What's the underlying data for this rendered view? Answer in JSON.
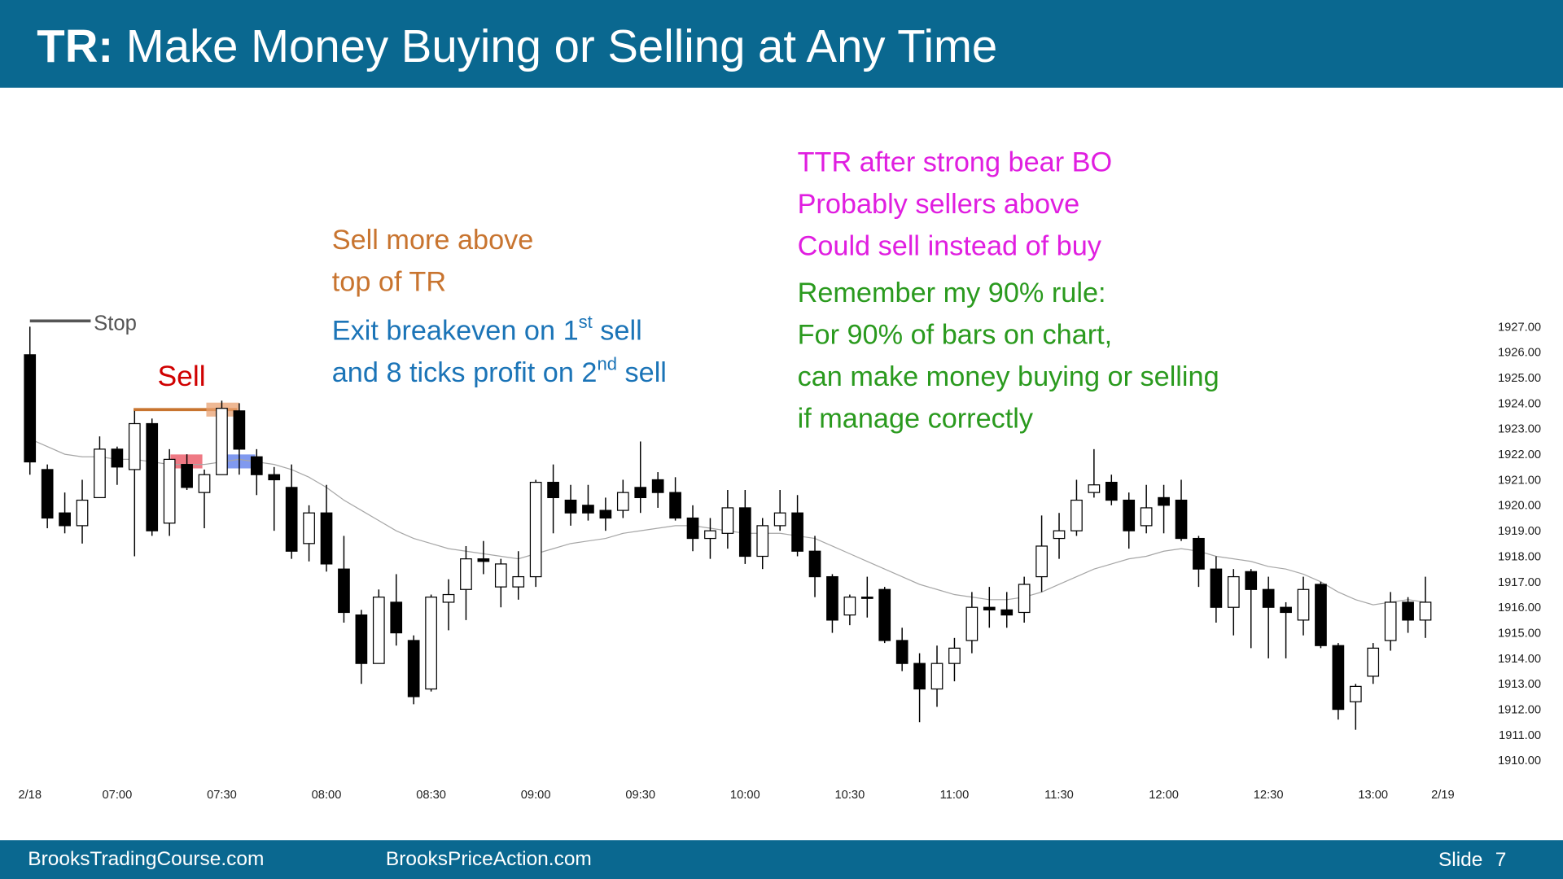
{
  "header": {
    "prefix": "TR:",
    "title": "Make Money Buying or Selling at Any Time"
  },
  "footer": {
    "left": "BrooksTradingCourse.com",
    "middle": "BrooksPriceAction.com",
    "slide_label": "Slide",
    "slide_number": "7"
  },
  "chart_data": {
    "type": "candlestick",
    "annotations": {
      "stop": "Stop",
      "sell": "Sell",
      "orange": [
        "Sell more above",
        "top of TR"
      ],
      "blue": [
        [
          "Exit breakeven on 1",
          "st",
          " sell"
        ],
        [
          "and 8 ticks profit on 2",
          "nd",
          " sell"
        ]
      ],
      "magenta": [
        "TTR after strong bear BO",
        "Probably sellers above",
        "Could sell instead of buy"
      ],
      "green": [
        "Remember my 90% rule:",
        "For 90% of bars on chart,",
        "can make money buying or selling",
        "if manage correctly"
      ]
    },
    "categories": [
      "2/18",
      null,
      null,
      null,
      null,
      "07:00",
      null,
      null,
      null,
      null,
      null,
      "07:30",
      null,
      null,
      null,
      null,
      null,
      "08:00",
      null,
      null,
      null,
      null,
      null,
      "08:30",
      null,
      null,
      null,
      null,
      null,
      "09:00",
      null,
      null,
      null,
      null,
      null,
      "09:30",
      null,
      null,
      null,
      null,
      null,
      "10:00",
      null,
      null,
      null,
      null,
      null,
      "10:30",
      null,
      null,
      null,
      null,
      null,
      "11:00",
      null,
      null,
      null,
      null,
      null,
      "11:30",
      null,
      null,
      null,
      null,
      null,
      "12:00",
      null,
      null,
      null,
      null,
      null,
      "12:30",
      null,
      null,
      null,
      null,
      null,
      "13:00",
      null,
      null,
      null,
      "2/19"
    ],
    "open": [
      1925.9,
      1921.4,
      1919.7,
      1919.2,
      1920.3,
      1922.2,
      1921.4,
      1923.2,
      1919.3,
      1921.6,
      1920.5,
      1921.2,
      1923.7,
      1921.9,
      1921.2,
      1920.7,
      1918.5,
      1919.7,
      1917.5,
      1915.7,
      1913.8,
      1916.2,
      1914.7,
      1912.8,
      1916.2,
      1916.7,
      1917.9,
      1916.8,
      1916.8,
      1917.2,
      1920.9,
      1920.2,
      1920.0,
      1919.8,
      1919.8,
      1920.7,
      1921.0,
      1920.5,
      1919.5,
      1918.7,
      1918.9,
      1919.9,
      1918.0,
      1919.2,
      1919.7,
      1918.2,
      1917.2,
      1915.7,
      1916.4,
      1916.7,
      1914.7,
      1913.8,
      1912.8,
      1913.8,
      1914.7,
      1916.0,
      1915.9,
      1915.8,
      1917.2,
      1918.7,
      1919.0,
      1920.5,
      1920.9,
      1920.2,
      1919.2,
      1920.3,
      1920.2,
      1918.7,
      1917.5,
      1916.0,
      1917.4,
      1916.7,
      1916.0,
      1915.5,
      1916.9,
      1914.5,
      1912.3,
      1913.3,
      1914.7,
      1916.2,
      1915.5,
      null
    ],
    "high": [
      1927.0,
      1921.6,
      1920.5,
      1921.0,
      1922.7,
      1922.3,
      1923.7,
      1923.4,
      1922.2,
      1922.0,
      1921.4,
      1924.1,
      1924.0,
      1922.2,
      1921.5,
      1921.6,
      1920.0,
      1920.8,
      1918.8,
      1915.9,
      1916.7,
      1917.3,
      1914.9,
      1916.5,
      1917.1,
      1918.4,
      1918.6,
      1917.9,
      1918.2,
      1921.0,
      1921.6,
      1920.8,
      1920.8,
      1920.3,
      1921.0,
      1922.5,
      1921.3,
      1921.1,
      1920.0,
      1919.5,
      1920.6,
      1920.6,
      1919.5,
      1920.6,
      1920.4,
      1918.8,
      1917.3,
      1916.5,
      1917.2,
      1916.8,
      1915.2,
      1914.2,
      1914.5,
      1914.8,
      1916.6,
      1916.8,
      1916.6,
      1917.2,
      1919.6,
      1919.7,
      1921.0,
      1922.2,
      1921.2,
      1920.5,
      1920.8,
      1920.8,
      1921.0,
      1918.8,
      1918.0,
      1917.5,
      1917.5,
      1917.2,
      1916.2,
      1917.2,
      1917.0,
      1914.6,
      1913.0,
      1914.6,
      1916.6,
      1916.4,
      1917.2,
      null
    ],
    "low": [
      1921.2,
      1919.1,
      1918.9,
      1918.5,
      1920.3,
      1920.8,
      1918.0,
      1918.8,
      1918.8,
      1920.6,
      1919.1,
      1921.2,
      1921.2,
      1920.4,
      1919.0,
      1917.9,
      1917.8,
      1917.4,
      1915.4,
      1913.0,
      1913.8,
      1914.5,
      1912.2,
      1912.7,
      1915.1,
      1915.5,
      1917.3,
      1916.0,
      1916.3,
      1916.8,
      1918.9,
      1919.2,
      1919.4,
      1919.0,
      1919.5,
      1919.7,
      1919.9,
      1919.4,
      1918.2,
      1917.9,
      1918.3,
      1917.7,
      1917.5,
      1919.0,
      1918.0,
      1916.4,
      1915.0,
      1915.3,
      1915.6,
      1914.6,
      1913.5,
      1911.5,
      1912.1,
      1913.1,
      1914.2,
      1915.2,
      1915.2,
      1915.4,
      1916.6,
      1917.9,
      1918.8,
      1920.3,
      1920.0,
      1918.3,
      1918.9,
      1918.9,
      1918.6,
      1916.8,
      1915.4,
      1914.9,
      1914.4,
      1914.0,
      1914.0,
      1914.9,
      1914.4,
      1911.6,
      1911.2,
      1913.0,
      1914.3,
      1915.0,
      1914.8,
      null
    ],
    "close": [
      1921.7,
      1919.5,
      1919.2,
      1920.2,
      1922.2,
      1921.5,
      1923.2,
      1919.0,
      1921.8,
      1920.7,
      1921.2,
      1923.8,
      1922.2,
      1921.2,
      1921.0,
      1918.2,
      1919.7,
      1917.7,
      1915.8,
      1913.8,
      1916.4,
      1915.0,
      1912.5,
      1916.4,
      1916.5,
      1917.9,
      1917.8,
      1917.7,
      1917.2,
      1920.9,
      1920.3,
      1919.7,
      1919.7,
      1919.5,
      1920.5,
      1920.3,
      1920.5,
      1919.5,
      1918.7,
      1919.0,
      1919.9,
      1918.0,
      1919.2,
      1919.7,
      1918.2,
      1917.2,
      1915.5,
      1916.4,
      1916.35,
      1914.7,
      1913.8,
      1912.8,
      1913.8,
      1914.4,
      1916.0,
      1915.9,
      1915.7,
      1916.9,
      1918.4,
      1919.0,
      1920.2,
      1920.8,
      1920.2,
      1919.0,
      1919.9,
      1920.0,
      1918.7,
      1917.5,
      1916.0,
      1917.2,
      1916.7,
      1916.0,
      1915.8,
      1916.7,
      1914.5,
      1912.0,
      1912.9,
      1914.4,
      1916.2,
      1915.5,
      1916.2,
      null
    ],
    "up_color": "#ffffff",
    "down_color": "#000000",
    "ma": {
      "color": "#a6a6a6",
      "values": [
        1922.6,
        1922.3,
        1922.0,
        1921.9,
        1921.9,
        1921.8,
        1921.8,
        1921.7,
        1921.6,
        1921.6,
        1921.6,
        1921.7,
        1921.8,
        1921.7,
        1921.6,
        1921.4,
        1921.1,
        1920.7,
        1920.2,
        1919.8,
        1919.4,
        1919.0,
        1918.7,
        1918.5,
        1918.3,
        1918.2,
        1918.1,
        1918.0,
        1917.9,
        1918.1,
        1918.3,
        1918.5,
        1918.6,
        1918.7,
        1918.9,
        1919.0,
        1919.1,
        1919.2,
        1919.2,
        1919.1,
        1919.0,
        1918.9,
        1918.9,
        1918.9,
        1918.8,
        1918.7,
        1918.4,
        1918.1,
        1917.8,
        1917.5,
        1917.2,
        1916.9,
        1916.7,
        1916.5,
        1916.4,
        1916.3,
        1916.3,
        1916.4,
        1916.6,
        1916.9,
        1917.2,
        1917.5,
        1917.7,
        1917.9,
        1918.0,
        1918.2,
        1918.3,
        1918.2,
        1918.0,
        1917.9,
        1917.8,
        1917.6,
        1917.5,
        1917.3,
        1917.0,
        1916.6,
        1916.3,
        1916.1,
        1916.2,
        1916.3,
        1916.2,
        null
      ]
    },
    "ylim": [
      1909.5,
      1928.0
    ],
    "yticks": [
      {
        "value": 1910,
        "label": "1910.00"
      },
      {
        "value": 1911,
        "label": "1911.00"
      },
      {
        "value": 1912,
        "label": "1912.00"
      },
      {
        "value": 1913,
        "label": "1913.00"
      },
      {
        "value": 1914,
        "label": "1914.00"
      },
      {
        "value": 1915,
        "label": "1915.00"
      },
      {
        "value": 1916,
        "label": "1916.00"
      },
      {
        "value": 1917,
        "label": "1917.00"
      },
      {
        "value": 1918,
        "label": "1918.00"
      },
      {
        "value": 1919,
        "label": "1919.00"
      },
      {
        "value": 1920,
        "label": "1920.00"
      },
      {
        "value": 1921,
        "label": "1921.00"
      },
      {
        "value": 1922,
        "label": "1922.00"
      },
      {
        "value": 1923,
        "label": "1923.00"
      },
      {
        "value": 1924,
        "label": "1924.00"
      },
      {
        "value": 1925,
        "label": "1925.00"
      },
      {
        "value": 1926,
        "label": "1926.00"
      },
      {
        "value": 1927,
        "label": "1927.00"
      }
    ],
    "grid": false
  }
}
